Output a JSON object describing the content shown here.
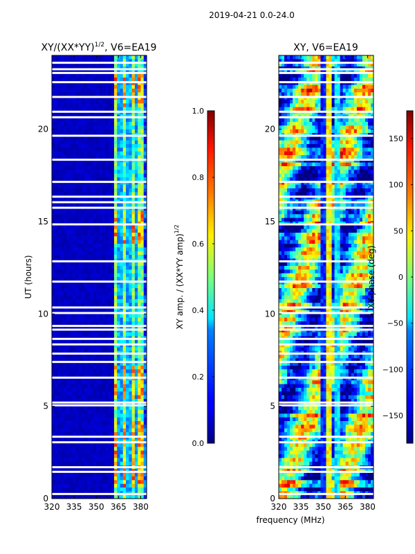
{
  "suptitle": "2019-04-21 0.0-24.0",
  "xlabel_shared": "frequency (MHz)",
  "chart_data": [
    {
      "type": "heatmap",
      "title": "XY/(XX*YY)",
      "title_superscript": "1/2",
      "title_suffix": ", V6=EA19",
      "xlabel": "",
      "ylabel": "UT (hours)",
      "xlim": [
        320,
        384
      ],
      "ylim": [
        0,
        24
      ],
      "xticks": [
        "320",
        "335",
        "350",
        "365",
        "380"
      ],
      "yticks": [
        "0",
        "5",
        "10",
        "15",
        "20"
      ],
      "colorbar": {
        "label": "XY amp. / (XX*YY amp)",
        "label_superscript": "1/2",
        "range": [
          0.0,
          1.0
        ],
        "ticks": [
          "0.0",
          "0.2",
          "0.4",
          "0.6",
          "0.8",
          "1.0"
        ],
        "colormap": "jet"
      },
      "blank_rows_ut": [
        0.25,
        1.45,
        1.7,
        3.05,
        3.35,
        5.05,
        5.2,
        6.55,
        7.4,
        7.85,
        8.35,
        8.65,
        9.15,
        9.35,
        10.05,
        10.35,
        11.75,
        12.85,
        14.85,
        15.75,
        16.05,
        16.35,
        17.15,
        18.35,
        19.65,
        20.65,
        20.95,
        21.75,
        22.55,
        23.05,
        23.25,
        23.6
      ]
    },
    {
      "type": "heatmap",
      "title": "XY, V6=EA19",
      "xlabel": "frequency (MHz)",
      "ylabel": "",
      "xlim": [
        320,
        384
      ],
      "ylim": [
        0,
        24
      ],
      "xticks": [
        "320",
        "335",
        "350",
        "365",
        "380"
      ],
      "yticks": [
        "0",
        "5",
        "10",
        "15",
        "20"
      ],
      "colorbar": {
        "label": "XY phase (deg)",
        "range": [
          -180,
          180
        ],
        "ticks": [
          "−150",
          "−100",
          "−50",
          "0",
          "50",
          "100",
          "150"
        ],
        "tick_values": [
          -150,
          -100,
          -50,
          0,
          50,
          100,
          150
        ],
        "colormap": "jet"
      },
      "blank_rows_ut": [
        0.25,
        1.45,
        1.7,
        3.05,
        3.35,
        5.05,
        5.2,
        6.55,
        7.4,
        7.85,
        8.35,
        8.65,
        9.15,
        9.35,
        10.05,
        10.35,
        11.75,
        12.85,
        14.85,
        15.75,
        16.05,
        16.35,
        17.15,
        18.35,
        19.65,
        20.65,
        20.95,
        21.75,
        22.55,
        23.05,
        23.25,
        23.6
      ]
    }
  ]
}
